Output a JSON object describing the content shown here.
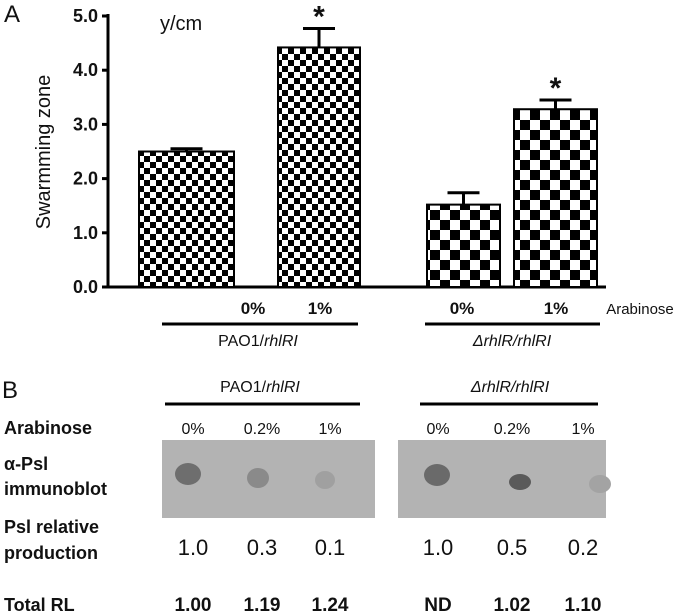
{
  "chart_data": {
    "type": "bar",
    "panel_label": "A",
    "y_unit": "y/cm",
    "ylabel": "Swarmming zone",
    "categories": [
      "0%",
      "1%",
      "0%",
      "1%"
    ],
    "values": [
      2.5,
      4.42,
      1.52,
      3.28
    ],
    "errors": [
      0.05,
      0.35,
      0.22,
      0.17
    ],
    "annotations": [
      null,
      "*",
      null,
      "*"
    ],
    "groups": [
      "PAO1/rhlRI",
      "ΔrhlR/rhlRI"
    ],
    "x_label": "Arabinose",
    "color": "#000000",
    "ylim": [
      0,
      5
    ],
    "yticks": [
      {
        "value": 0,
        "label": "0.0"
      },
      {
        "value": 1,
        "label": "1.0"
      },
      {
        "value": 2,
        "label": "2.0"
      },
      {
        "value": 3,
        "label": "3.0"
      },
      {
        "value": 4,
        "label": "4.0"
      },
      {
        "value": 5,
        "label": "5.0"
      }
    ]
  },
  "panel_b": {
    "label": "B",
    "groups": [
      "PAO1/rhlRI",
      "ΔrhlR/rhlRI"
    ],
    "row_labels": {
      "arabinose": "Arabinose",
      "blot": [
        "α-Psl",
        "immunoblot"
      ],
      "production": [
        "Psl relative",
        "production"
      ],
      "total": "Total RL"
    },
    "columns": [
      "0%",
      "0.2%",
      "1%",
      "0%",
      "0.2%",
      "1%"
    ],
    "production": [
      "1.0",
      "0.3",
      "0.1",
      "1.0",
      "0.5",
      "0.2"
    ],
    "total_rl": [
      "1.00",
      "1.19",
      "1.24",
      "ND",
      "1.02",
      "1.10"
    ]
  }
}
